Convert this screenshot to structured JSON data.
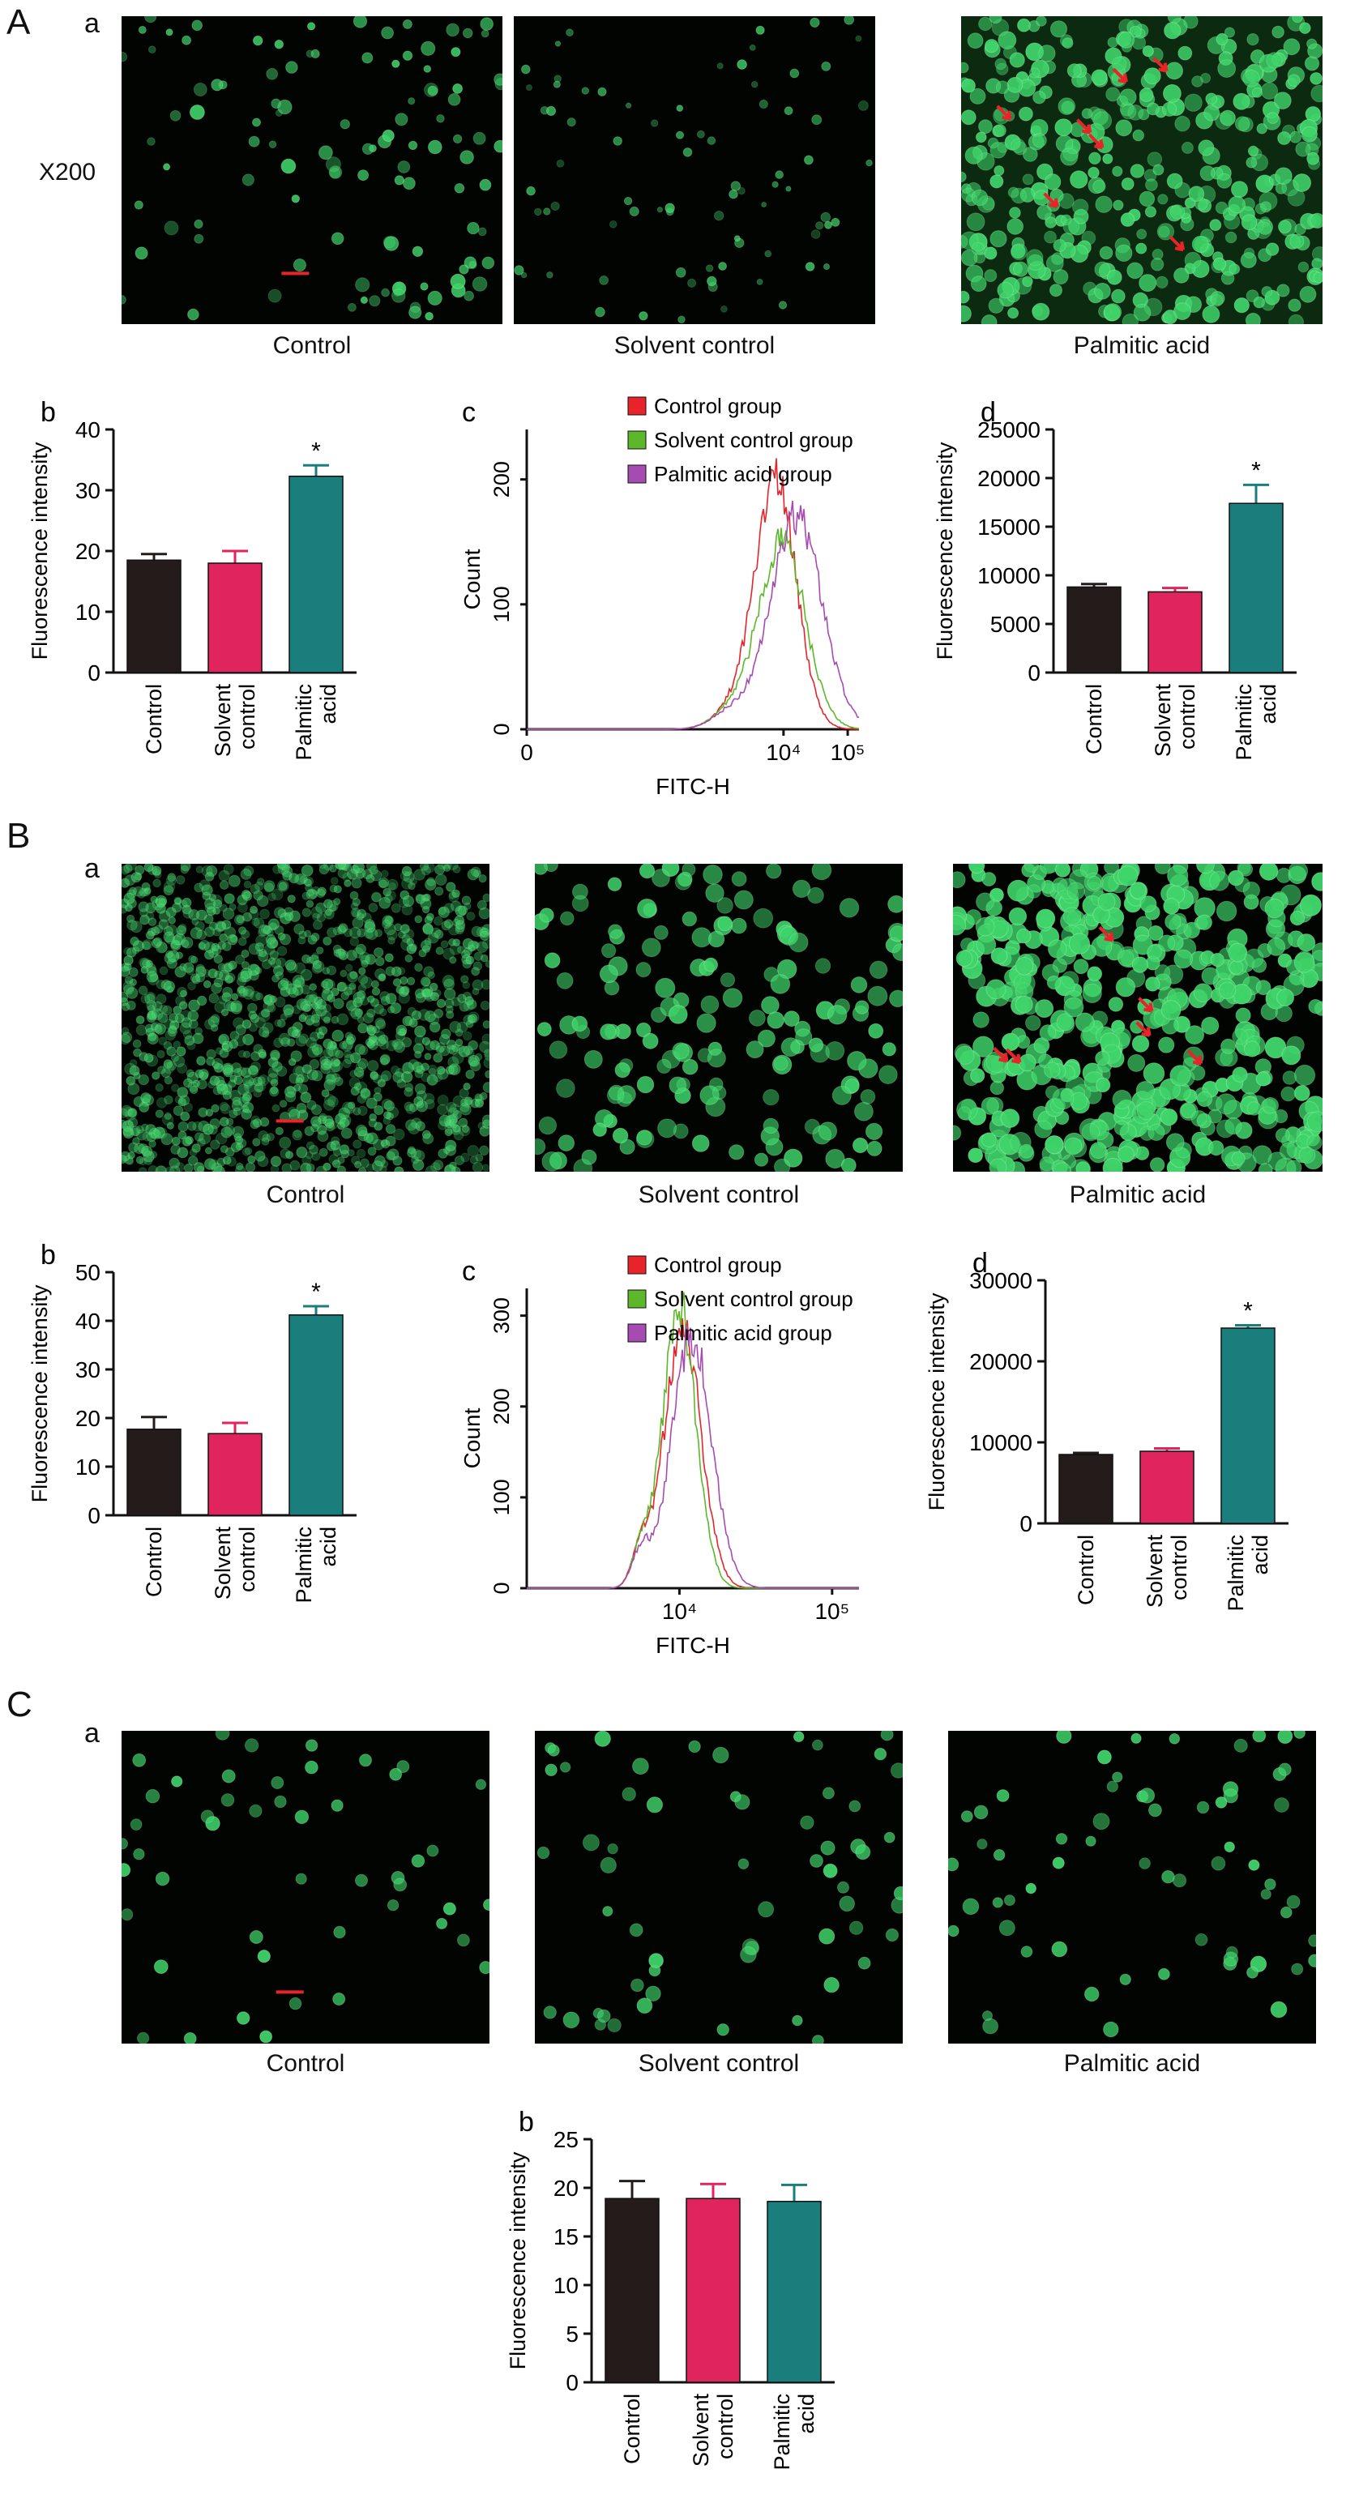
{
  "magnification": "X200",
  "colors": {
    "control": "#231c1b",
    "solvent": "#e0245e",
    "palmitic": "#1a7f7c",
    "hist_control": "#e8242a",
    "hist_solvent": "#5cb82a",
    "hist_palmitic": "#a64bb1",
    "cell": "#3fd46a",
    "arrow": "#e8242a"
  },
  "panels": {
    "A": {
      "letter": "A",
      "a": {
        "letter": "a",
        "captions": [
          "Control",
          "Solvent control",
          "Palmitic acid"
        ]
      },
      "b": {
        "letter": "b"
      },
      "c": {
        "letter": "c"
      },
      "d": {
        "letter": "d"
      }
    },
    "B": {
      "letter": "B",
      "a": {
        "letter": "a",
        "captions": [
          "Control",
          "Solvent control",
          "Palmitic acid"
        ]
      },
      "b": {
        "letter": "b"
      },
      "c": {
        "letter": "c"
      },
      "d": {
        "letter": "d"
      }
    },
    "C": {
      "letter": "C",
      "a": {
        "letter": "a",
        "captions": [
          "Control",
          "Solvent control",
          "Palmitic acid"
        ]
      },
      "b": {
        "letter": "b"
      }
    }
  },
  "chart_data": [
    {
      "id": "A-b",
      "type": "bar",
      "categories": [
        "Control",
        "Solvent control",
        "Palmitic acid"
      ],
      "values": [
        18.5,
        18,
        32.3
      ],
      "errors": [
        1,
        2,
        1.8
      ],
      "ylabel": "Fluorescence intensity",
      "ylim": [
        0,
        40
      ],
      "yticks": [
        0,
        10,
        20,
        30,
        40
      ],
      "significance": [
        null,
        null,
        "*"
      ]
    },
    {
      "id": "A-c",
      "type": "line",
      "xlabel": "FITC-H",
      "ylabel": "Count",
      "xscale": "log",
      "xlim": [
        1,
        150000
      ],
      "ylim": [
        0,
        240
      ],
      "xticks": [
        "0",
        "10⁴",
        "10⁵"
      ],
      "yticks": [
        0,
        100,
        200
      ],
      "series": [
        {
          "name": "Control group",
          "peak_x": 7500,
          "peak_y": 200,
          "width": 0.32
        },
        {
          "name": "Solvent control group",
          "peak_x": 9500,
          "peak_y": 150,
          "width": 0.36
        },
        {
          "name": "Palmitic acid group",
          "peak_x": 16000,
          "peak_y": 170,
          "width": 0.4
        }
      ]
    },
    {
      "id": "A-d",
      "type": "bar",
      "categories": [
        "Control",
        "Solvent control",
        "Palmitic acid"
      ],
      "values": [
        8800,
        8300,
        17400
      ],
      "errors": [
        300,
        400,
        1900
      ],
      "ylabel": "Fluorescence intensity",
      "ylim": [
        0,
        25000
      ],
      "yticks": [
        0,
        5000,
        10000,
        15000,
        20000,
        25000
      ],
      "significance": [
        null,
        null,
        "*"
      ]
    },
    {
      "id": "B-b",
      "type": "bar",
      "categories": [
        "Control",
        "Solvent control",
        "Palmitic acid"
      ],
      "values": [
        17.7,
        16.8,
        41.2
      ],
      "errors": [
        2.5,
        2.2,
        1.8
      ],
      "ylabel": "Fluorescence intensity",
      "ylim": [
        0,
        50
      ],
      "yticks": [
        0,
        10,
        20,
        30,
        40,
        50
      ],
      "significance": [
        null,
        null,
        "*"
      ]
    },
    {
      "id": "B-c",
      "type": "line",
      "xlabel": "FITC-H",
      "ylabel": "Count",
      "xscale": "log",
      "xlim": [
        1000,
        150000
      ],
      "ylim": [
        0,
        330
      ],
      "xticks": [
        "10⁴",
        "10⁵"
      ],
      "yticks": [
        0,
        100,
        200,
        300
      ],
      "series": [
        {
          "name": "Control group",
          "peak_x": 10500,
          "peak_y": 290,
          "width": 0.12
        },
        {
          "name": "Solvent control group",
          "peak_x": 10000,
          "peak_y": 310,
          "width": 0.11
        },
        {
          "name": "Palmitic acid group",
          "peak_x": 12000,
          "peak_y": 280,
          "width": 0.13
        }
      ]
    },
    {
      "id": "B-d",
      "type": "bar",
      "categories": [
        "Control",
        "Solvent control",
        "Palmitic acid"
      ],
      "values": [
        8500,
        8900,
        24100
      ],
      "errors": [
        200,
        350,
        350
      ],
      "ylabel": "Fluorescence intensity",
      "ylim": [
        0,
        30000
      ],
      "yticks": [
        0,
        10000,
        20000,
        30000
      ],
      "significance": [
        null,
        null,
        "*"
      ]
    },
    {
      "id": "C-b",
      "type": "bar",
      "categories": [
        "Control",
        "Solvent control",
        "Palmitic acid"
      ],
      "values": [
        18.9,
        18.9,
        18.6
      ],
      "errors": [
        1.8,
        1.5,
        1.7
      ],
      "ylabel": "Fluorescence intensity",
      "ylim": [
        0,
        25
      ],
      "yticks": [
        0,
        5,
        10,
        15,
        20,
        25
      ],
      "significance": [
        null,
        null,
        null
      ]
    }
  ]
}
